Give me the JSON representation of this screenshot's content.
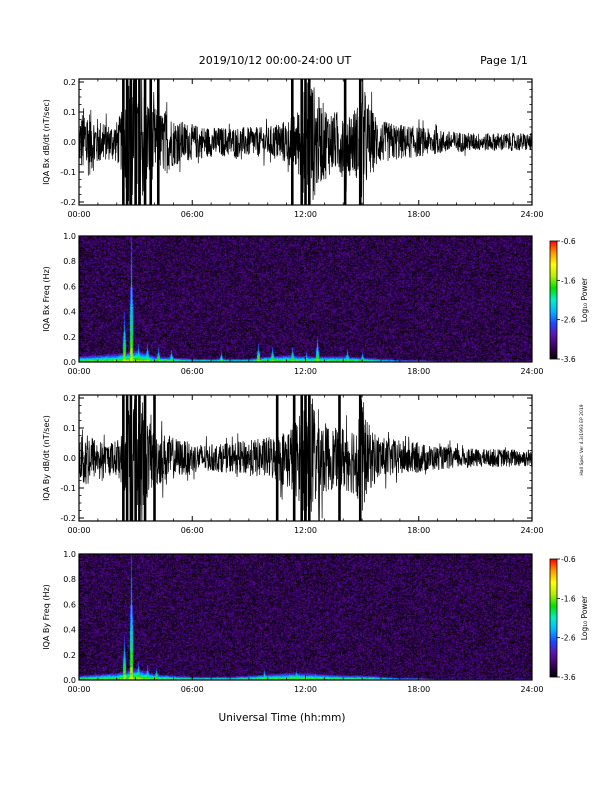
{
  "header": {
    "date_range": "2019/10/12  00:00-24:00 UT",
    "page": "Page 1/1"
  },
  "footer": {
    "x_title": "Universal Time (hh:mm)"
  },
  "side_note": "Hall Spec Ver 4.3/1993 EP 2019",
  "colorbar": {
    "label": "Log₁₀ Power",
    "ticks": [
      "-0.6",
      "-1.6",
      "-2.6",
      "-3.6"
    ],
    "colors": [
      "#000000",
      "#3a0060",
      "#5a14a6",
      "#2244ff",
      "#00b4ff",
      "#00f0c8",
      "#00e000",
      "#b4f000",
      "#ffff00",
      "#ff9900",
      "#ff0000"
    ]
  },
  "chart_data": [
    {
      "type": "line",
      "ylabel": "IQA Bx dB/dt (nT/sec)",
      "xlabel": "",
      "x_ticks": [
        "00:00",
        "06:00",
        "12:00",
        "18:00",
        "24:00"
      ],
      "y_ticks": [
        "0.2",
        "0.1",
        "0.0",
        "-0.1",
        "-0.2"
      ],
      "xlim": [
        0,
        24
      ],
      "ylim": [
        -0.21,
        0.21
      ],
      "x_unit": "hours UT",
      "envelope": {
        "x": [
          0,
          0.3,
          0.6,
          1,
          1.5,
          2,
          2.4,
          2.6,
          2.8,
          3.0,
          3.2,
          3.5,
          3.7,
          4,
          4.3,
          4.6,
          5,
          5.5,
          6,
          7,
          8,
          8.5,
          9,
          10,
          10.5,
          11,
          11.5,
          11.8,
          12,
          12.2,
          12.4,
          12.8,
          13,
          13.3,
          13.6,
          14,
          14.5,
          14.8,
          15,
          15.2,
          15.5,
          16,
          17,
          18,
          19,
          20,
          21,
          22,
          23,
          24
        ],
        "amplitude": [
          0.075,
          0.13,
          0.11,
          0.08,
          0.06,
          0.07,
          0.12,
          0.23,
          0.25,
          0.23,
          0.25,
          0.17,
          0.14,
          0.12,
          0.1,
          0.11,
          0.08,
          0.07,
          0.06,
          0.05,
          0.05,
          0.05,
          0.05,
          0.05,
          0.065,
          0.075,
          0.1,
          0.14,
          0.23,
          0.25,
          0.2,
          0.14,
          0.13,
          0.11,
          0.1,
          0.12,
          0.11,
          0.13,
          0.23,
          0.16,
          0.11,
          0.07,
          0.06,
          0.05,
          0.04,
          0.035,
          0.03,
          0.03,
          0.03,
          0.03
        ]
      },
      "bursts": [
        2.35,
        2.55,
        2.75,
        3.0,
        3.2,
        3.5,
        3.8,
        4.2,
        11.3,
        11.8,
        12.0,
        12.2,
        14.1,
        14.9
      ],
      "color": "#000000"
    },
    {
      "type": "heatmap",
      "ylabel": "IQA Bx Freq (Hz)",
      "xlabel": "",
      "x_ticks": [
        "00:00",
        "06:00",
        "12:00",
        "18:00",
        "24:00"
      ],
      "y_ticks": [
        "1.0",
        "0.8",
        "0.6",
        "0.4",
        "0.2",
        "0.0"
      ],
      "xlim": [
        0,
        24
      ],
      "ylim": [
        0,
        1.0
      ],
      "x_unit": "hours UT",
      "z_range": [
        -3.6,
        -0.6
      ],
      "background_power": -3.35,
      "low_freq_band": {
        "x": [
          0,
          1,
          2,
          3,
          4,
          5,
          6,
          7,
          8,
          9,
          10,
          11,
          12,
          13,
          14,
          15,
          16,
          17,
          18,
          19,
          20,
          21,
          22,
          23,
          24
        ],
        "top_hz": [
          0.05,
          0.06,
          0.07,
          0.1,
          0.05,
          0.04,
          0.03,
          0.03,
          0.03,
          0.03,
          0.05,
          0.06,
          0.05,
          0.05,
          0.05,
          0.04,
          0.03,
          0.02,
          0.02,
          0.01,
          0.01,
          0.01,
          0.01,
          0.01,
          0.01
        ]
      },
      "spikes": [
        {
          "t": 2.75,
          "top_hz": 1.0
        },
        {
          "t": 2.4,
          "top_hz": 0.4
        },
        {
          "t": 3.1,
          "top_hz": 0.15
        },
        {
          "t": 3.6,
          "top_hz": 0.15
        },
        {
          "t": 4.2,
          "top_hz": 0.12
        },
        {
          "t": 4.9,
          "top_hz": 0.1
        },
        {
          "t": 7.5,
          "top_hz": 0.08
        },
        {
          "t": 9.5,
          "top_hz": 0.15
        },
        {
          "t": 10.2,
          "top_hz": 0.12
        },
        {
          "t": 11.3,
          "top_hz": 0.12
        },
        {
          "t": 12.0,
          "top_hz": 0.08
        },
        {
          "t": 12.6,
          "top_hz": 0.2
        },
        {
          "t": 14.2,
          "top_hz": 0.1
        },
        {
          "t": 15.0,
          "top_hz": 0.08
        }
      ]
    },
    {
      "type": "line",
      "ylabel": "IQA By dB/dt (nT/sec)",
      "xlabel": "",
      "x_ticks": [
        "00:00",
        "06:00",
        "12:00",
        "18:00",
        "24:00"
      ],
      "y_ticks": [
        "0.2",
        "0.1",
        "0.0",
        "-0.1",
        "-0.2"
      ],
      "xlim": [
        0,
        24
      ],
      "ylim": [
        -0.21,
        0.21
      ],
      "x_unit": "hours UT",
      "envelope": {
        "x": [
          0,
          0.3,
          0.6,
          1,
          1.5,
          2,
          2.4,
          2.6,
          2.8,
          3.0,
          3.2,
          3.5,
          3.7,
          4,
          4.3,
          4.6,
          5,
          5.5,
          6,
          7,
          8,
          8.5,
          9,
          10,
          10.5,
          11,
          11.5,
          11.8,
          12,
          12.2,
          12.4,
          12.8,
          13,
          13.3,
          13.6,
          14,
          14.5,
          14.8,
          15,
          15.2,
          15.5,
          16,
          17,
          18,
          19,
          20,
          21,
          22,
          23,
          24
        ],
        "amplitude": [
          0.06,
          0.12,
          0.08,
          0.06,
          0.05,
          0.06,
          0.1,
          0.23,
          0.25,
          0.23,
          0.25,
          0.16,
          0.12,
          0.1,
          0.09,
          0.08,
          0.07,
          0.06,
          0.05,
          0.045,
          0.05,
          0.055,
          0.06,
          0.07,
          0.08,
          0.1,
          0.13,
          0.16,
          0.23,
          0.25,
          0.2,
          0.15,
          0.12,
          0.11,
          0.1,
          0.11,
          0.12,
          0.14,
          0.23,
          0.13,
          0.1,
          0.07,
          0.06,
          0.05,
          0.04,
          0.035,
          0.03,
          0.03,
          0.03,
          0.03
        ]
      },
      "bursts": [
        2.35,
        2.55,
        2.75,
        3.0,
        3.2,
        3.5,
        4.0,
        10.5,
        11.4,
        11.8,
        12.0,
        12.2,
        13.8,
        14.9
      ],
      "color": "#000000"
    },
    {
      "type": "heatmap",
      "ylabel": "IQA By Freq (Hz)",
      "xlabel": "",
      "x_ticks": [
        "00:00",
        "06:00",
        "12:00",
        "18:00",
        "24:00"
      ],
      "y_ticks": [
        "1.0",
        "0.8",
        "0.6",
        "0.4",
        "0.2",
        "0.0"
      ],
      "xlim": [
        0,
        24
      ],
      "ylim": [
        0,
        1.0
      ],
      "x_unit": "hours UT",
      "z_range": [
        -3.6,
        -0.6
      ],
      "background_power": -3.35,
      "low_freq_band": {
        "x": [
          0,
          1,
          2,
          3,
          4,
          5,
          6,
          7,
          8,
          9,
          10,
          11,
          12,
          13,
          14,
          15,
          16,
          17,
          18,
          19,
          20,
          21,
          22,
          23,
          24
        ],
        "top_hz": [
          0.04,
          0.05,
          0.06,
          0.1,
          0.05,
          0.04,
          0.03,
          0.03,
          0.03,
          0.04,
          0.05,
          0.06,
          0.06,
          0.05,
          0.04,
          0.04,
          0.03,
          0.02,
          0.02,
          0.01,
          0.01,
          0.01,
          0.01,
          0.01,
          0.01
        ]
      },
      "spikes": [
        {
          "t": 2.75,
          "top_hz": 1.0
        },
        {
          "t": 2.4,
          "top_hz": 0.35
        },
        {
          "t": 3.1,
          "top_hz": 0.15
        },
        {
          "t": 3.6,
          "top_hz": 0.12
        },
        {
          "t": 4.1,
          "top_hz": 0.1
        },
        {
          "t": 9.8,
          "top_hz": 0.08
        },
        {
          "t": 11.5,
          "top_hz": 0.08
        },
        {
          "t": 12.5,
          "top_hz": 0.06
        }
      ]
    }
  ]
}
